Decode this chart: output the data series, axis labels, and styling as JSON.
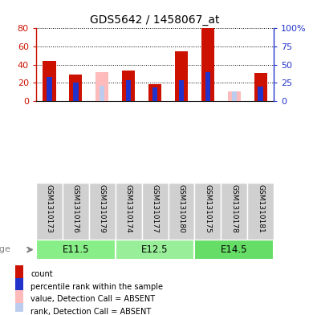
{
  "title": "GDS5642 / 1458067_at",
  "samples": [
    "GSM1310173",
    "GSM1310176",
    "GSM1310179",
    "GSM1310174",
    "GSM1310177",
    "GSM1310180",
    "GSM1310175",
    "GSM1310178",
    "GSM1310181"
  ],
  "count_values": [
    44,
    29,
    null,
    33,
    18,
    55,
    80,
    null,
    31
  ],
  "rank_values": [
    33,
    25,
    null,
    28,
    19,
    29,
    40,
    null,
    20
  ],
  "absent_value_values": [
    null,
    null,
    32,
    null,
    null,
    null,
    null,
    10,
    null
  ],
  "absent_rank_values": [
    null,
    null,
    21,
    null,
    null,
    null,
    null,
    13,
    null
  ],
  "age_groups": [
    {
      "label": "E11.5",
      "start": 0,
      "end": 3
    },
    {
      "label": "E12.5",
      "start": 3,
      "end": 6
    },
    {
      "label": "E14.5",
      "start": 6,
      "end": 9
    }
  ],
  "ylim_left": [
    0,
    80
  ],
  "ylim_right": [
    0,
    100
  ],
  "yticks_left": [
    0,
    20,
    40,
    60,
    80
  ],
  "ytick_labels_left": [
    "0",
    "20",
    "40",
    "60",
    "80"
  ],
  "yticks_right": [
    0,
    25,
    50,
    75,
    100
  ],
  "ytick_labels_right": [
    "0",
    "25",
    "50",
    "75",
    "100%"
  ],
  "color_count": "#CC1100",
  "color_rank": "#2233CC",
  "color_absent_value": "#FFBBBB",
  "color_absent_rank": "#BBCCEE",
  "bg_xticklabels": "#D0D0D0",
  "age_group_colors": [
    "#88EE88",
    "#99EE99",
    "#66DD66"
  ],
  "legend_labels": [
    "count",
    "percentile rank within the sample",
    "value, Detection Call = ABSENT",
    "rank, Detection Call = ABSENT"
  ]
}
